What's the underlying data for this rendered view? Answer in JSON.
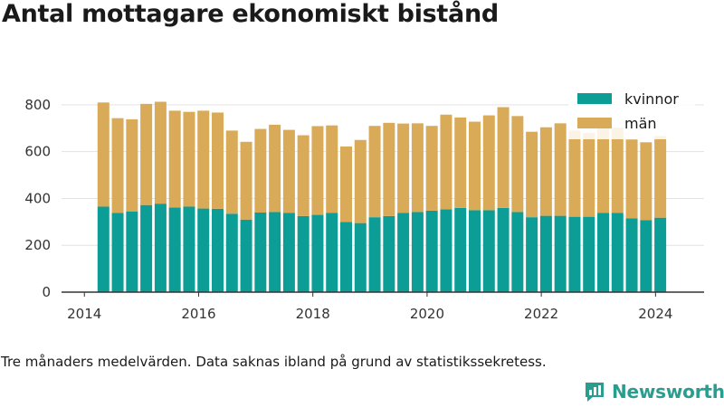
{
  "title": "Antal mottagare ekonomiskt bistånd",
  "caption": "Tre månaders medelvärden. Data saknas ibland på grund av statistikssekretess.",
  "brand": {
    "name": "Newsworthy",
    "icon": "newsworthy-logo-icon"
  },
  "colors": {
    "kvinnor": "#0c9e96",
    "man": "#d9ab59",
    "axis": "#333333",
    "grid": "#e3e3e3"
  },
  "chart_data": {
    "type": "bar",
    "stacked": true,
    "x_ticks": [
      "2014",
      "2016",
      "2018",
      "2020",
      "2022",
      "2024"
    ],
    "y_ticks": [
      "0",
      "200",
      "400",
      "600",
      "800"
    ],
    "ylim": [
      0,
      900
    ],
    "grid": "horizontal",
    "legend_position": "top-right",
    "x": [
      "2014-05",
      "2014-08",
      "2014-11",
      "2015-02",
      "2015-05",
      "2015-08",
      "2015-11",
      "2016-02",
      "2016-05",
      "2016-08",
      "2016-11",
      "2017-02",
      "2017-05",
      "2017-08",
      "2017-11",
      "2018-02",
      "2018-05",
      "2018-08",
      "2018-11",
      "2019-02",
      "2019-05",
      "2019-08",
      "2019-11",
      "2020-02",
      "2020-05",
      "2020-08",
      "2020-11",
      "2021-02",
      "2021-05",
      "2021-08",
      "2021-11",
      "2022-02",
      "2022-05",
      "2022-08",
      "2022-11",
      "2023-02",
      "2023-05",
      "2023-08",
      "2023-11",
      "2024-02"
    ],
    "series": [
      {
        "name": "kvinnor",
        "values": [
          365,
          338,
          345,
          372,
          378,
          362,
          365,
          357,
          356,
          335,
          310,
          340,
          342,
          338,
          325,
          330,
          338,
          300,
          295,
          320,
          325,
          338,
          342,
          348,
          354,
          360,
          350,
          350,
          360,
          342,
          320,
          326,
          326,
          322,
          322,
          338,
          338,
          315,
          308,
          318
        ]
      },
      {
        "name": "män",
        "values": [
          445,
          405,
          393,
          432,
          435,
          413,
          405,
          418,
          411,
          355,
          332,
          357,
          373,
          355,
          345,
          379,
          374,
          322,
          355,
          390,
          398,
          382,
          379,
          362,
          404,
          386,
          378,
          405,
          430,
          410,
          365,
          378,
          395,
          368,
          358,
          362,
          365,
          337,
          332,
          349
        ]
      }
    ]
  }
}
